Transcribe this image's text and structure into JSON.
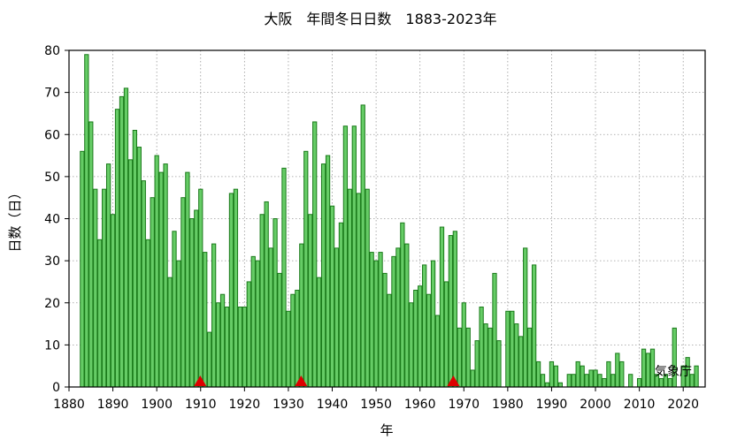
{
  "chart_data": {
    "type": "bar",
    "title": "大阪　年間冬日日数　1883-2023年",
    "xlabel": "年",
    "ylabel": "日数（日）",
    "xlim": [
      1880,
      2025
    ],
    "ylim": [
      0,
      80
    ],
    "x_ticks": [
      1880,
      1890,
      1900,
      1910,
      1920,
      1930,
      1940,
      1950,
      1960,
      1970,
      1980,
      1990,
      2000,
      2010,
      2020
    ],
    "y_ticks": [
      0,
      10,
      20,
      30,
      40,
      50,
      60,
      70,
      80
    ],
    "grid": true,
    "bar_color": "#66cc66",
    "bar_edge_color": "#1a7a1a",
    "marker_color": "#dd0000",
    "station_change_markers_x": [
      1909.9,
      1932.9,
      1967.6
    ],
    "credit": "気象庁",
    "x": [
      1883,
      1884,
      1885,
      1886,
      1887,
      1888,
      1889,
      1890,
      1891,
      1892,
      1893,
      1894,
      1895,
      1896,
      1897,
      1898,
      1899,
      1900,
      1901,
      1902,
      1903,
      1904,
      1905,
      1906,
      1907,
      1908,
      1909,
      1910,
      1911,
      1912,
      1913,
      1914,
      1915,
      1916,
      1917,
      1918,
      1919,
      1920,
      1921,
      1922,
      1923,
      1924,
      1925,
      1926,
      1927,
      1928,
      1929,
      1930,
      1931,
      1932,
      1933,
      1934,
      1935,
      1936,
      1937,
      1938,
      1939,
      1940,
      1941,
      1942,
      1943,
      1944,
      1945,
      1946,
      1947,
      1948,
      1949,
      1950,
      1951,
      1952,
      1953,
      1954,
      1955,
      1956,
      1957,
      1958,
      1959,
      1960,
      1961,
      1962,
      1963,
      1964,
      1965,
      1966,
      1967,
      1968,
      1969,
      1970,
      1971,
      1972,
      1973,
      1974,
      1975,
      1976,
      1977,
      1978,
      1979,
      1980,
      1981,
      1982,
      1983,
      1984,
      1985,
      1986,
      1987,
      1988,
      1989,
      1990,
      1991,
      1992,
      1993,
      1994,
      1995,
      1996,
      1997,
      1998,
      1999,
      2000,
      2001,
      2002,
      2003,
      2004,
      2005,
      2006,
      2007,
      2008,
      2009,
      2010,
      2011,
      2012,
      2013,
      2014,
      2015,
      2016,
      2017,
      2018,
      2019,
      2020,
      2021,
      2022,
      2023
    ],
    "values": [
      56,
      79,
      63,
      47,
      35,
      47,
      53,
      41,
      66,
      69,
      71,
      54,
      61,
      57,
      49,
      35,
      45,
      55,
      51,
      53,
      26,
      37,
      30,
      45,
      51,
      40,
      42,
      47,
      32,
      13,
      34,
      20,
      22,
      19,
      46,
      47,
      19,
      19,
      25,
      31,
      30,
      41,
      44,
      33,
      40,
      27,
      52,
      18,
      22,
      23,
      34,
      56,
      41,
      63,
      26,
      53,
      55,
      43,
      33,
      39,
      62,
      47,
      62,
      46,
      67,
      47,
      32,
      30,
      32,
      27,
      22,
      31,
      33,
      39,
      34,
      20,
      23,
      24,
      29,
      22,
      30,
      17,
      38,
      25,
      36,
      37,
      14,
      20,
      14,
      4,
      11,
      19,
      15,
      14,
      27,
      11,
      0,
      18,
      18,
      15,
      12,
      33,
      14,
      29,
      6,
      3,
      1,
      6,
      5,
      1,
      0,
      3,
      3,
      6,
      5,
      3,
      4,
      4,
      3,
      2,
      6,
      3,
      8,
      6,
      0,
      3,
      0,
      2,
      9,
      8,
      9,
      3,
      2,
      3,
      2,
      14,
      0,
      5,
      7,
      3,
      5
    ]
  }
}
